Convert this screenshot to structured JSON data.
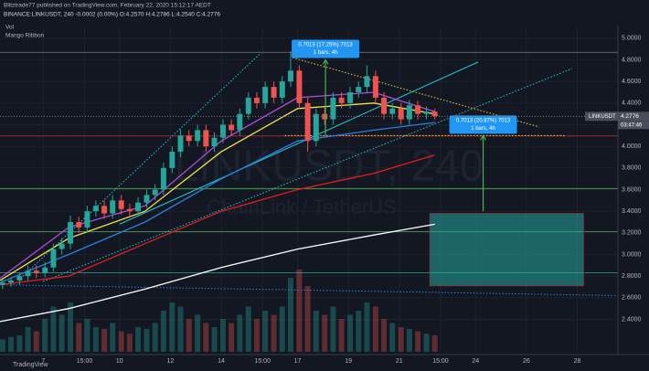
{
  "header": {
    "publisher": "Blitztrade77 published on TradingView.com, February 22, 2020 15:12:17 AEDT",
    "symbol_line": "BINANCE:LINKUSDT, 240  -0.0002 (0.00%)  O:4.2570 H:4.2786 L:4.2540 C:4.2776",
    "indicators": [
      "Vol",
      "Mango Ribbon"
    ],
    "watermark": "LINKUSDT, 240",
    "watermark_sub": "ChainLink / TetherUS",
    "footer": "TradingView"
  },
  "chart_data": {
    "type": "candlestick",
    "xlim": [
      5.3,
      29.6
    ],
    "xticks": [
      {
        "value": 7,
        "label": "7"
      },
      {
        "value": 8.625,
        "label": "15:00"
      },
      {
        "value": 10,
        "label": "10"
      },
      {
        "value": 12,
        "label": "12"
      },
      {
        "value": 14,
        "label": "14"
      },
      {
        "value": 15.625,
        "label": "15:00"
      },
      {
        "value": 17,
        "label": "17"
      },
      {
        "value": 19,
        "label": "19"
      },
      {
        "value": 21,
        "label": "21"
      },
      {
        "value": 22.625,
        "label": "15:00"
      },
      {
        "value": 24,
        "label": "24"
      },
      {
        "value": 26,
        "label": "26"
      },
      {
        "value": 28,
        "label": "28"
      }
    ],
    "ylim": [
      2.1,
      5.1
    ],
    "yticks": [
      {
        "value": 2.4,
        "label": "2.4000"
      },
      {
        "value": 2.6,
        "label": "2.6000"
      },
      {
        "value": 2.8,
        "label": "2.8000"
      },
      {
        "value": 3.0,
        "label": "3.0000"
      },
      {
        "value": 3.2,
        "label": "3.2000"
      },
      {
        "value": 3.4,
        "label": "3.4000"
      },
      {
        "value": 3.6,
        "label": "3.6000"
      },
      {
        "value": 3.8,
        "label": "3.8000"
      },
      {
        "value": 4.0,
        "label": "4.0000"
      },
      {
        "value": 4.2,
        "label": "4.2000"
      },
      {
        "value": 4.4,
        "label": "4.4000"
      },
      {
        "value": 4.6,
        "label": "4.6000"
      },
      {
        "value": 4.8,
        "label": "4.8000"
      },
      {
        "value": 5.0,
        "label": "5.0000"
      }
    ],
    "up_color": "#26a69a",
    "down_color": "#ef5350",
    "x": [
      5.4,
      5.73,
      6.07,
      6.4,
      6.73,
      7.07,
      7.4,
      7.73,
      8.07,
      8.4,
      8.73,
      9.07,
      9.4,
      9.73,
      10.07,
      10.4,
      10.73,
      11.07,
      11.4,
      11.73,
      12.07,
      12.4,
      12.73,
      13.07,
      13.4,
      13.73,
      14.07,
      14.4,
      14.73,
      15.07,
      15.4,
      15.73,
      16.07,
      16.4,
      16.73,
      17.07,
      17.4,
      17.73,
      18.07,
      18.4,
      18.73,
      19.07,
      19.4,
      19.73,
      20.07,
      20.4,
      20.73,
      21.07,
      21.4,
      21.73,
      22.07,
      22.4
    ],
    "candles": {
      "open": [
        2.72,
        2.74,
        2.76,
        2.8,
        2.85,
        2.83,
        2.88,
        3.05,
        3.1,
        3.3,
        3.25,
        3.4,
        3.45,
        3.38,
        3.5,
        3.42,
        3.4,
        3.48,
        3.55,
        3.6,
        3.8,
        3.95,
        4.1,
        4.05,
        4.15,
        4.0,
        4.08,
        4.2,
        4.15,
        4.3,
        4.45,
        4.4,
        4.55,
        4.45,
        4.6,
        4.7,
        4.4,
        4.05,
        4.3,
        4.25,
        4.45,
        4.4,
        4.5,
        4.55,
        4.65,
        4.45,
        4.3,
        4.35,
        4.25,
        4.38,
        4.3,
        4.32
      ],
      "high": [
        2.77,
        2.79,
        2.83,
        2.9,
        2.9,
        2.93,
        3.1,
        3.15,
        3.36,
        3.35,
        3.45,
        3.5,
        3.5,
        3.55,
        3.55,
        3.47,
        3.53,
        3.6,
        3.65,
        3.85,
        4.0,
        4.16,
        4.15,
        4.2,
        4.2,
        4.13,
        4.25,
        4.25,
        4.35,
        4.5,
        4.5,
        4.6,
        4.6,
        4.65,
        4.88,
        4.75,
        4.45,
        4.35,
        4.36,
        4.5,
        4.5,
        4.55,
        4.6,
        4.75,
        4.7,
        4.5,
        4.4,
        4.4,
        4.43,
        4.42,
        4.37,
        4.35
      ],
      "low": [
        2.68,
        2.7,
        2.72,
        2.76,
        2.78,
        2.79,
        2.84,
        3.0,
        3.05,
        3.2,
        3.2,
        3.35,
        3.33,
        3.33,
        3.37,
        3.35,
        3.35,
        3.43,
        3.5,
        3.55,
        3.75,
        3.9,
        4.0,
        4.0,
        3.95,
        3.95,
        4.03,
        4.1,
        4.1,
        4.25,
        4.35,
        4.35,
        4.4,
        4.4,
        4.55,
        4.35,
        3.95,
        4.0,
        4.2,
        4.2,
        4.35,
        4.35,
        4.45,
        4.5,
        4.4,
        4.25,
        4.25,
        4.2,
        4.2,
        4.25,
        4.25,
        4.25
      ],
      "close": [
        2.74,
        2.76,
        2.8,
        2.85,
        2.83,
        2.88,
        3.05,
        3.1,
        3.3,
        3.25,
        3.4,
        3.45,
        3.38,
        3.5,
        3.42,
        3.4,
        3.48,
        3.55,
        3.6,
        3.8,
        3.95,
        4.1,
        4.05,
        4.15,
        4.0,
        4.08,
        4.2,
        4.15,
        4.3,
        4.45,
        4.4,
        4.55,
        4.45,
        4.6,
        4.7,
        4.4,
        4.05,
        4.3,
        4.25,
        4.45,
        4.4,
        4.5,
        4.55,
        4.65,
        4.45,
        4.3,
        4.35,
        4.25,
        4.38,
        4.3,
        4.32,
        4.28
      ]
    },
    "volume_lim": [
      0,
      100
    ],
    "volume": [
      15,
      18,
      20,
      30,
      25,
      40,
      55,
      45,
      60,
      35,
      40,
      30,
      28,
      35,
      25,
      22,
      30,
      28,
      35,
      50,
      60,
      55,
      40,
      45,
      35,
      30,
      40,
      35,
      45,
      55,
      40,
      50,
      45,
      55,
      90,
      100,
      80,
      50,
      45,
      55,
      40,
      45,
      50,
      60,
      55,
      40,
      35,
      30,
      28,
      25,
      22,
      20
    ],
    "series": [
      {
        "color": "#ffffff",
        "x": [
          5.3,
          8,
          11,
          14,
          17,
          20,
          22.4
        ],
        "values": [
          2.38,
          2.5,
          2.68,
          2.88,
          3.05,
          3.18,
          3.28
        ]
      },
      {
        "color": "#e01e1e",
        "x": [
          5.3,
          8,
          11,
          14,
          17,
          20,
          22.4
        ],
        "values": [
          2.72,
          2.8,
          3.1,
          3.4,
          3.6,
          3.75,
          3.92
        ]
      },
      {
        "color": "#2a7fe0",
        "x": [
          5.3,
          8,
          11,
          14,
          17,
          20,
          22.4
        ],
        "values": [
          2.74,
          3.0,
          3.3,
          3.7,
          4.05,
          4.15,
          4.22
        ]
      },
      {
        "color": "#f0e050",
        "x": [
          5.3,
          8,
          11,
          14,
          17,
          20,
          22.4
        ],
        "values": [
          2.76,
          3.15,
          3.4,
          3.95,
          4.35,
          4.4,
          4.3
        ]
      },
      {
        "color": "#b04fd8",
        "x": [
          5.3,
          8,
          11,
          14,
          17,
          20,
          22.4
        ],
        "values": [
          2.78,
          3.25,
          3.45,
          4.05,
          4.45,
          4.5,
          4.32
        ]
      }
    ],
    "trend_lines": [
      {
        "color": "#26c6da",
        "dashed": false,
        "points": [
          [
            10,
            3.28
          ],
          [
            24.1,
            4.78
          ]
        ]
      },
      {
        "color": "#26c6da",
        "dashed": true,
        "points": [
          [
            6.2,
            2.8
          ],
          [
            15.5,
            4.85
          ]
        ]
      },
      {
        "color": "#26c6da",
        "dashed": true,
        "points": [
          [
            7,
            2.75
          ],
          [
            27.8,
            4.72
          ]
        ]
      },
      {
        "color": "#e8d040",
        "dashed": true,
        "points": [
          [
            16.8,
            4.82
          ],
          [
            26.5,
            4.18
          ]
        ]
      },
      {
        "color": "#e8d040",
        "dashed": true,
        "points": [
          [
            16.5,
            4.1
          ],
          [
            27.5,
            4.1
          ]
        ]
      },
      {
        "color": "#2a7fe0",
        "dashed": true,
        "points": [
          [
            5.3,
            2.72
          ],
          [
            29.6,
            2.62
          ]
        ]
      }
    ],
    "levels": [
      {
        "value": 4.87,
        "color": "#787b86"
      },
      {
        "value": 4.096,
        "color": "#b22833"
      },
      {
        "value": 3.61,
        "color": "#4caf50"
      },
      {
        "value": 3.21,
        "color": "#4caf50"
      },
      {
        "value": 2.83,
        "color": "#26a69a"
      }
    ],
    "zones": [
      {
        "x": [
          22.2,
          28.25
        ],
        "y": [
          2.71,
          3.38
        ],
        "color": "#26a69a"
      }
    ],
    "measures": [
      {
        "x": 18.1,
        "from": 4.1,
        "to": 4.8,
        "text": "0.7013 (17.25%) 7013",
        "bars": "1 bars, 4h"
      },
      {
        "x": 24.3,
        "from": 3.4,
        "to": 4.1,
        "text": "0.7013 (20.87%) 7013",
        "bars": "1 bars, 4h"
      }
    ],
    "last_price": {
      "symbol": "LINKUSDT",
      "value": 4.2776,
      "countdown": "03:47:46"
    }
  }
}
